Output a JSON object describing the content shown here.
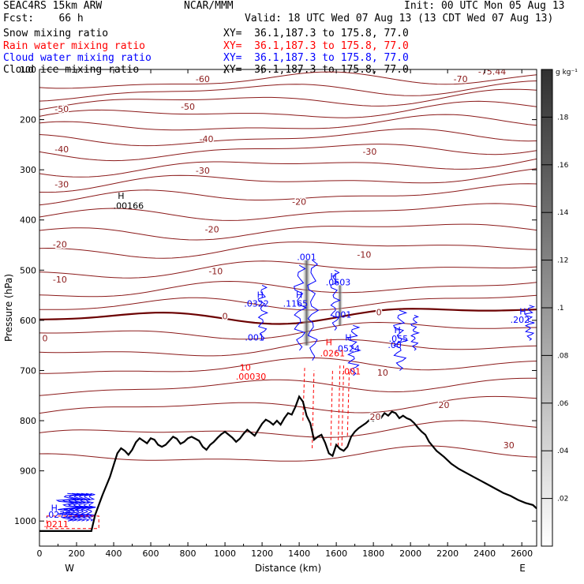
{
  "header": {
    "model": "SEAC4RS 15km ARW",
    "forecast": "Fcst:    66 h",
    "center": "NCAR/MMM",
    "init": "Init: 00 UTC Mon 05 Aug 13",
    "valid": "Valid: 18 UTC Wed 07 Aug 13 (13 CDT Wed 07 Aug 13)",
    "fields": [
      {
        "name": "Snow mixing ratio",
        "xy": "XY=  36.1,187.3 to 175.8, 77.0",
        "color": "#000000"
      },
      {
        "name": "Rain water mixing ratio",
        "xy": "XY=  36.1,187.3 to 175.8, 77.0",
        "color": "#ff0000"
      },
      {
        "name": "Cloud water mixing ratio",
        "xy": "XY=  36.1,187.3 to 175.8, 77.0",
        "color": "#0000ff"
      },
      {
        "name": "Cloud ice mixing ratio",
        "xy": "XY=  36.1,187.3 to 175.8, 77.0",
        "color": "#000000"
      }
    ]
  },
  "chart_data": {
    "type": "cross-section",
    "xlabel": "Distance (km)",
    "ylabel": "Pressure (hPa)",
    "xlim": [
      0,
      2680
    ],
    "ylim": [
      1050,
      100
    ],
    "x_ticks": [
      0,
      200,
      400,
      600,
      800,
      1000,
      1200,
      1400,
      1600,
      1800,
      2000,
      2200,
      2400,
      2600
    ],
    "y_ticks": [
      100,
      200,
      300,
      400,
      500,
      600,
      700,
      800,
      900,
      1000
    ],
    "x_end_labels": {
      "left": "W",
      "right": "E"
    },
    "colorbar": {
      "unit": "g kg⁻¹",
      "ticks": [
        ".02",
        ".04",
        ".06",
        ".08",
        ".1",
        ".12",
        ".14",
        ".16",
        ".18"
      ]
    },
    "temperature_contours": {
      "color": "#8b1a1a",
      "zero_color": "#6b0000",
      "labels": [
        {
          "text": "-60",
          "x": 880,
          "p": 125
        },
        {
          "text": "-70",
          "x": 2270,
          "p": 125
        },
        {
          "text": "-75.44",
          "x": 2440,
          "p": 110
        },
        {
          "text": "-50",
          "x": 120,
          "p": 185
        },
        {
          "text": "-50",
          "x": 800,
          "p": 180
        },
        {
          "text": "-40",
          "x": 900,
          "p": 245
        },
        {
          "text": "-40",
          "x": 120,
          "p": 265
        },
        {
          "text": "-30",
          "x": 880,
          "p": 308
        },
        {
          "text": "-30",
          "x": 1780,
          "p": 270
        },
        {
          "text": "-30",
          "x": 120,
          "p": 335
        },
        {
          "text": "-20",
          "x": 930,
          "p": 425
        },
        {
          "text": "-20",
          "x": 1400,
          "p": 370
        },
        {
          "text": "-20",
          "x": 110,
          "p": 455
        },
        {
          "text": "-10",
          "x": 950,
          "p": 508
        },
        {
          "text": "-10",
          "x": 110,
          "p": 525
        },
        {
          "text": "-10",
          "x": 1750,
          "p": 475
        },
        {
          "text": "0",
          "x": 1000,
          "p": 598
        },
        {
          "text": "0",
          "x": 30,
          "p": 642
        },
        {
          "text": "0",
          "x": 1830,
          "p": 590
        },
        {
          "text": "10",
          "x": 1850,
          "p": 710
        },
        {
          "text": "20",
          "x": 2180,
          "p": 775
        },
        {
          "text": "20",
          "x": 1810,
          "p": 798
        },
        {
          "text": "30",
          "x": 2530,
          "p": 855
        }
      ]
    },
    "cloud_water_labels": [
      {
        "text": "H",
        "x": 1190,
        "p": 555
      },
      {
        "text": ".0322",
        "x": 1170,
        "p": 573
      },
      {
        "text": ".001",
        "x": 1160,
        "p": 640
      },
      {
        "text": ".001",
        "x": 1440,
        "p": 480
      },
      {
        "text": "H",
        "x": 1400,
        "p": 555
      },
      {
        "text": ".1165",
        "x": 1380,
        "p": 573
      },
      {
        "text": "H",
        "x": 1585,
        "p": 518
      },
      {
        "text": ".0603",
        "x": 1610,
        "p": 530
      },
      {
        "text": ".001",
        "x": 1630,
        "p": 595
      },
      {
        "text": "H",
        "x": 1665,
        "p": 640
      },
      {
        "text": ".0524",
        "x": 1660,
        "p": 662
      },
      {
        "text": "H",
        "x": 1930,
        "p": 625
      },
      {
        "text": ".055",
        "x": 1935,
        "p": 643
      },
      {
        "text": ".00",
        "x": 1915,
        "p": 655
      },
      {
        "text": "H",
        "x": 2605,
        "p": 588
      },
      {
        "text": ".202",
        "x": 2590,
        "p": 605
      },
      {
        "text": "H",
        "x": 80,
        "p": 980
      },
      {
        "text": ".0272",
        "x": 100,
        "p": 993
      }
    ],
    "rain_water_labels": [
      {
        "text": "H",
        "x": 1560,
        "p": 650
      },
      {
        "text": ".0261",
        "x": 1580,
        "p": 672
      },
      {
        "text": "10",
        "x": 1110,
        "p": 700
      },
      {
        "text": ".00030",
        "x": 1140,
        "p": 718
      },
      {
        "text": ".001",
        "x": 1680,
        "p": 708
      },
      {
        "text": ".0211",
        "x": 90,
        "p": 1012
      }
    ],
    "snow_labels": [
      {
        "text": "H",
        "x": 440,
        "p": 358
      },
      {
        "text": ".00166",
        "x": 480,
        "p": 378
      }
    ],
    "terrain_profile": [
      [
        0,
        1020
      ],
      [
        280,
        1020
      ],
      [
        300,
        988
      ],
      [
        340,
        948
      ],
      [
        380,
        912
      ],
      [
        420,
        865
      ],
      [
        440,
        855
      ],
      [
        460,
        860
      ],
      [
        480,
        868
      ],
      [
        500,
        858
      ],
      [
        520,
        843
      ],
      [
        540,
        835
      ],
      [
        560,
        840
      ],
      [
        580,
        845
      ],
      [
        600,
        835
      ],
      [
        620,
        838
      ],
      [
        640,
        848
      ],
      [
        660,
        852
      ],
      [
        680,
        848
      ],
      [
        700,
        840
      ],
      [
        720,
        832
      ],
      [
        740,
        836
      ],
      [
        760,
        846
      ],
      [
        780,
        842
      ],
      [
        800,
        835
      ],
      [
        820,
        832
      ],
      [
        840,
        836
      ],
      [
        860,
        840
      ],
      [
        880,
        852
      ],
      [
        900,
        858
      ],
      [
        920,
        848
      ],
      [
        940,
        842
      ],
      [
        960,
        834
      ],
      [
        980,
        827
      ],
      [
        1000,
        822
      ],
      [
        1020,
        828
      ],
      [
        1040,
        834
      ],
      [
        1060,
        842
      ],
      [
        1080,
        836
      ],
      [
        1100,
        826
      ],
      [
        1120,
        818
      ],
      [
        1140,
        824
      ],
      [
        1160,
        830
      ],
      [
        1180,
        818
      ],
      [
        1200,
        806
      ],
      [
        1220,
        798
      ],
      [
        1240,
        802
      ],
      [
        1260,
        808
      ],
      [
        1280,
        800
      ],
      [
        1300,
        808
      ],
      [
        1320,
        795
      ],
      [
        1340,
        785
      ],
      [
        1360,
        788
      ],
      [
        1380,
        772
      ],
      [
        1400,
        752
      ],
      [
        1420,
        762
      ],
      [
        1440,
        790
      ],
      [
        1460,
        805
      ],
      [
        1480,
        838
      ],
      [
        1500,
        832
      ],
      [
        1520,
        828
      ],
      [
        1540,
        844
      ],
      [
        1560,
        865
      ],
      [
        1580,
        870
      ],
      [
        1600,
        848
      ],
      [
        1620,
        856
      ],
      [
        1640,
        860
      ],
      [
        1660,
        852
      ],
      [
        1680,
        832
      ],
      [
        1700,
        822
      ],
      [
        1720,
        815
      ],
      [
        1740,
        810
      ],
      [
        1760,
        805
      ],
      [
        1780,
        798
      ],
      [
        1800,
        800
      ],
      [
        1820,
        792
      ],
      [
        1840,
        795
      ],
      [
        1860,
        785
      ],
      [
        1880,
        790
      ],
      [
        1900,
        782
      ],
      [
        1920,
        785
      ],
      [
        1940,
        795
      ],
      [
        1960,
        790
      ],
      [
        1980,
        795
      ],
      [
        2000,
        798
      ],
      [
        2020,
        805
      ],
      [
        2040,
        814
      ],
      [
        2060,
        822
      ],
      [
        2080,
        828
      ],
      [
        2100,
        842
      ],
      [
        2140,
        860
      ],
      [
        2180,
        872
      ],
      [
        2220,
        886
      ],
      [
        2260,
        896
      ],
      [
        2300,
        904
      ],
      [
        2340,
        912
      ],
      [
        2380,
        920
      ],
      [
        2420,
        928
      ],
      [
        2460,
        936
      ],
      [
        2500,
        944
      ],
      [
        2540,
        950
      ],
      [
        2580,
        958
      ],
      [
        2620,
        964
      ],
      [
        2660,
        968
      ],
      [
        2680,
        975
      ]
    ]
  }
}
